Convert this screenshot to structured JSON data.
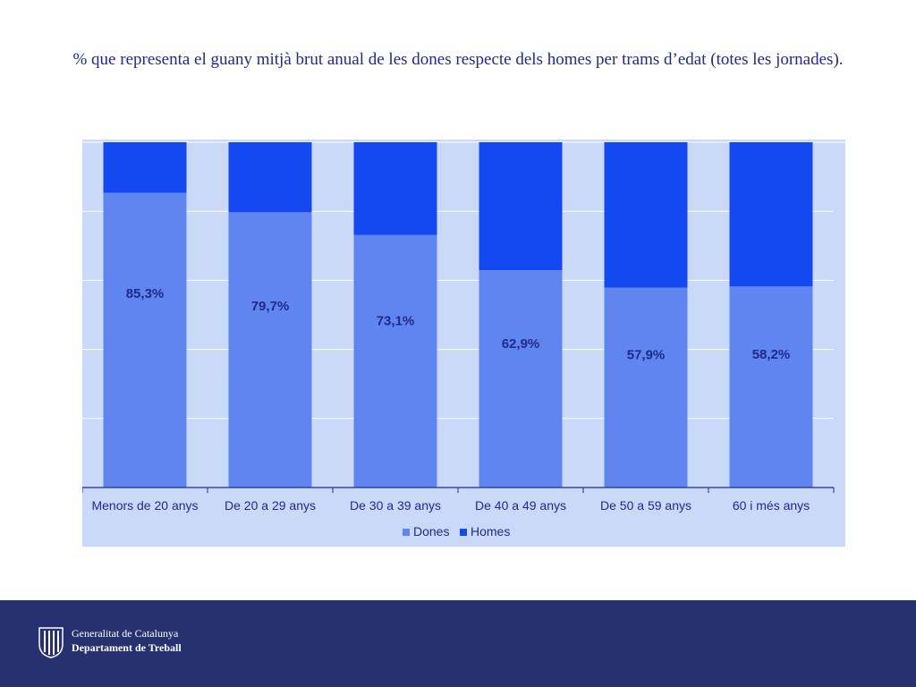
{
  "title": "% que representa el guany mitjà brut anual de les dones respecte dels homes per trams d’edat (totes les jornades).",
  "colors": {
    "dones": "#5f86f0",
    "homes": "#1448f0",
    "background": "#c9d9f7",
    "label": "#1f2a8c"
  },
  "chart_data": {
    "type": "bar",
    "stacked": true,
    "normalized": true,
    "categories": [
      "Menors de 20 anys",
      "De 20 a 29 anys",
      "De 30 a 39 anys",
      "De 40 a 49 anys",
      "De 50 a 59 anys",
      "60 i més anys"
    ],
    "series": [
      {
        "name": "Dones",
        "values": [
          85.3,
          79.7,
          73.1,
          62.9,
          57.9,
          58.2
        ]
      },
      {
        "name": "Homes",
        "values": [
          100,
          100,
          100,
          100,
          100,
          100
        ]
      }
    ],
    "data_labels": [
      "85,3%",
      "79,7%",
      "73,1%",
      "62,9%",
      "57,9%",
      "58,2%"
    ],
    "legend": [
      "Dones",
      "Homes"
    ],
    "legend_position": "bottom",
    "grid": true
  },
  "footer": {
    "org": "Generalitat de Catalunya",
    "department": "Departament de Treball"
  }
}
